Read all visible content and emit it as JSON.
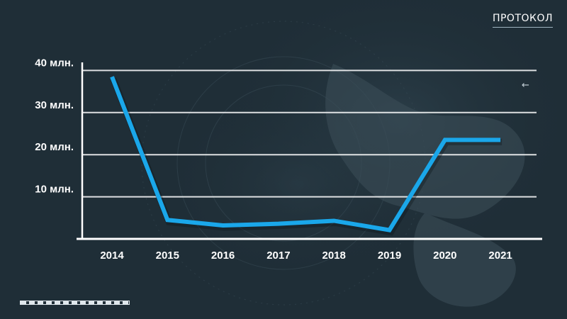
{
  "brand": {
    "label": "ПРОТОКОЛ"
  },
  "icons": {
    "back": "←"
  },
  "colors": {
    "background": "#1f2e37",
    "line": "#1aa7ea",
    "grid": "#ffffff",
    "text": "#ffffff"
  },
  "chart_data": {
    "type": "line",
    "title": "",
    "xlabel": "",
    "ylabel": "",
    "categories": [
      "2014",
      "2015",
      "2016",
      "2017",
      "2018",
      "2019",
      "2020",
      "2021"
    ],
    "series": [
      {
        "values": [
          38.5,
          4.5,
          3.2,
          3.6,
          4.3,
          2.1,
          23.5,
          23.5
        ]
      }
    ],
    "ylim": [
      0,
      50
    ],
    "yticks": [
      {
        "value": 10,
        "label": "10 млн."
      },
      {
        "value": 20,
        "label": "20 млн."
      },
      {
        "value": 30,
        "label": "30 млн."
      },
      {
        "value": 40,
        "label": "40 млн."
      }
    ],
    "grid": true,
    "legend": "none"
  }
}
